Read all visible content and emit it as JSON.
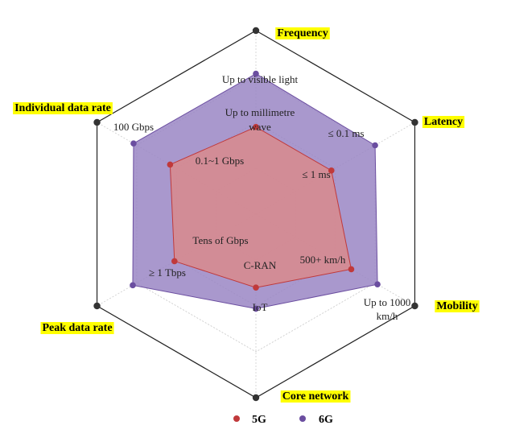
{
  "chart_data": {
    "type": "radar",
    "axes": [
      "Frequency",
      "Latency",
      "Mobility",
      "Core network",
      "Peak data rate",
      "Individual data rate"
    ],
    "rmax": 4,
    "grid_levels": [
      1,
      2,
      3,
      4
    ],
    "grid": true,
    "legend_position": "bottom",
    "series": [
      {
        "name": "6G",
        "color": "#6b4ea0",
        "fill": "#9a86c4",
        "values": [
          3.06,
          3.0,
          3.06,
          2.06,
          3.1,
          3.08
        ]
      },
      {
        "name": "5G",
        "color": "#c0393b",
        "fill": "#d9898c",
        "values": [
          1.9,
          1.9,
          2.4,
          1.6,
          2.05,
          2.16
        ]
      }
    ],
    "annotations": [
      {
        "text": "Up to visible light"
      },
      {
        "text": "Up to millimetre"
      },
      {
        "text": "wave"
      },
      {
        "text": "≤  0.1 ms"
      },
      {
        "text": "≤  1 ms"
      },
      {
        "text": "500+ km/h"
      },
      {
        "text": "Up to 1000"
      },
      {
        "text": "km/h"
      },
      {
        "text": "C-RAN"
      },
      {
        "text": "IoT"
      },
      {
        "text": "Tens of Gbps"
      },
      {
        "text": "≥ 1 Tbps"
      },
      {
        "text": "0.1~1 Gbps"
      },
      {
        "text": "100 Gbps"
      }
    ],
    "axis_label_bg": "#ffff00",
    "marker_color_outer": "#333333"
  }
}
